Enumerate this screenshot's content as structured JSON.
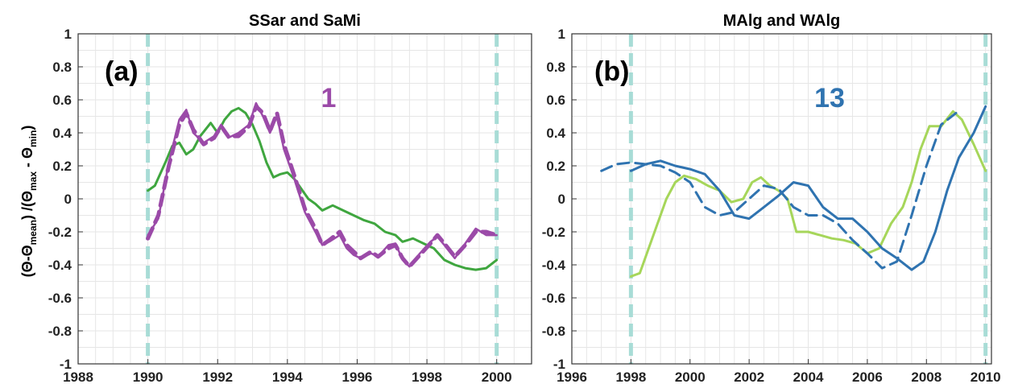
{
  "ylabel": {
    "p1": "(Θ-Θ",
    "s1": "mean",
    "p2": ") /(Θ",
    "s2": "max",
    "p3": " - Θ",
    "s3": "min",
    "p4": ")"
  },
  "colors": {
    "purple": "#9b4aa8",
    "green_a": "#3fa63f",
    "green_b": "#a6d65a",
    "blue": "#2f73b0",
    "vline": "#a8dcd6"
  },
  "chart_data": [
    {
      "type": "line",
      "title": "SSar and SaMi",
      "panel_label": "(a)",
      "annotation": "1",
      "annotation_color": "#9b4aa8",
      "xlim": [
        1988,
        2001
      ],
      "ylim": [
        -1,
        1
      ],
      "xticks": [
        1988,
        1990,
        1992,
        1994,
        1996,
        1998,
        2000
      ],
      "yticks": [
        -1,
        -0.8,
        -0.6,
        -0.4,
        -0.2,
        0,
        0.2,
        0.4,
        0.6,
        0.8,
        1
      ],
      "vlines": [
        1990,
        2000
      ],
      "grid": true,
      "series": [
        {
          "color": "#3fa63f",
          "dash": "solid",
          "width": 3,
          "x": [
            1990,
            1990.2,
            1990.5,
            1990.7,
            1990.9,
            1991.1,
            1991.3,
            1991.5,
            1991.8,
            1992.0,
            1992.2,
            1992.4,
            1992.6,
            1992.8,
            1993.0,
            1993.2,
            1993.4,
            1993.6,
            1993.8,
            1994.0,
            1994.2,
            1994.4,
            1994.6,
            1994.8,
            1995.0,
            1995.3,
            1995.6,
            1995.9,
            1996.2,
            1996.5,
            1996.8,
            1997.1,
            1997.3,
            1997.6,
            1997.9,
            1998.2,
            1998.5,
            1998.8,
            1999.1,
            1999.4,
            1999.7,
            2000
          ],
          "y": [
            0.05,
            0.08,
            0.22,
            0.32,
            0.34,
            0.27,
            0.3,
            0.38,
            0.46,
            0.4,
            0.48,
            0.53,
            0.55,
            0.52,
            0.45,
            0.35,
            0.22,
            0.13,
            0.15,
            0.16,
            0.12,
            0.06,
            0.0,
            -0.03,
            -0.07,
            -0.04,
            -0.07,
            -0.1,
            -0.13,
            -0.15,
            -0.2,
            -0.22,
            -0.26,
            -0.24,
            -0.27,
            -0.3,
            -0.37,
            -0.4,
            -0.42,
            -0.43,
            -0.42,
            -0.37
          ]
        },
        {
          "color": "#9b4aa8",
          "dash": "dashed",
          "width": 5,
          "x": [
            1990,
            1990.3,
            1990.6,
            1990.9,
            1991.1,
            1991.3,
            1991.6,
            1991.9,
            1992.1,
            1992.3,
            1992.6,
            1992.9,
            1993.1,
            1993.3,
            1993.5,
            1993.7,
            1993.9,
            1994.2,
            1994.5,
            1994.8,
            1995.0,
            1995.2,
            1995.5,
            1995.7,
            1995.9,
            1996.1,
            1996.4,
            1996.6,
            1996.9,
            1997.1,
            1997.3,
            1997.5,
            1997.8,
            1998.1,
            1998.3,
            1998.5,
            1998.8,
            1999.1,
            1999.4,
            1999.7,
            2000
          ],
          "y": [
            -0.24,
            -0.1,
            0.2,
            0.45,
            0.52,
            0.42,
            0.33,
            0.37,
            0.44,
            0.38,
            0.38,
            0.44,
            0.56,
            0.52,
            0.41,
            0.52,
            0.33,
            0.14,
            -0.06,
            -0.18,
            -0.28,
            -0.25,
            -0.2,
            -0.28,
            -0.32,
            -0.36,
            -0.32,
            -0.35,
            -0.3,
            -0.28,
            -0.36,
            -0.41,
            -0.34,
            -0.27,
            -0.22,
            -0.27,
            -0.35,
            -0.28,
            -0.2,
            -0.2,
            -0.22
          ]
        },
        {
          "color": "#9b4aa8",
          "dash": "solid",
          "width": 2.5,
          "x": [
            1990,
            1990.3,
            1990.6,
            1990.9,
            1991.1,
            1991.3,
            1991.6,
            1991.9,
            1992.1,
            1992.3,
            1992.6,
            1992.9,
            1993.1,
            1993.3,
            1993.5,
            1993.7,
            1993.9,
            1994.2,
            1994.5,
            1994.8,
            1995.0,
            1995.2,
            1995.5,
            1995.7,
            1995.9,
            1996.1,
            1996.4,
            1996.6,
            1996.9,
            1997.1,
            1997.3,
            1997.5,
            1997.8,
            1998.1,
            1998.3,
            1998.5,
            1998.8,
            1999.1,
            1999.4,
            1999.7,
            2000
          ],
          "y": [
            -0.22,
            -0.12,
            0.22,
            0.48,
            0.54,
            0.4,
            0.34,
            0.38,
            0.45,
            0.37,
            0.4,
            0.45,
            0.58,
            0.5,
            0.4,
            0.5,
            0.3,
            0.12,
            -0.08,
            -0.2,
            -0.28,
            -0.26,
            -0.22,
            -0.3,
            -0.34,
            -0.36,
            -0.33,
            -0.35,
            -0.28,
            -0.27,
            -0.37,
            -0.41,
            -0.33,
            -0.26,
            -0.23,
            -0.28,
            -0.36,
            -0.27,
            -0.18,
            -0.22,
            -0.22
          ]
        }
      ]
    },
    {
      "type": "line",
      "title": "MAlg and WAlg",
      "panel_label": "(b)",
      "annotation": "13",
      "annotation_color": "#2f73b0",
      "xlim": [
        1996,
        2010.2
      ],
      "ylim": [
        -1,
        1
      ],
      "xticks": [
        1996,
        1998,
        2000,
        2002,
        2004,
        2006,
        2008,
        2010
      ],
      "yticks": [
        -1,
        -0.8,
        -0.6,
        -0.4,
        -0.2,
        0,
        0.2,
        0.4,
        0.6,
        0.8,
        1
      ],
      "vlines": [
        1998,
        2010
      ],
      "grid": true,
      "series": [
        {
          "color": "#a6d65a",
          "dash": "solid",
          "width": 3,
          "x": [
            1998,
            1998.3,
            1998.6,
            1998.9,
            1999.2,
            1999.5,
            1999.8,
            2000.2,
            2000.6,
            2001.0,
            2001.4,
            2001.8,
            2002.1,
            2002.4,
            2002.7,
            2003.0,
            2003.3,
            2003.6,
            2004.0,
            2004.4,
            2004.8,
            2005.2,
            2005.6,
            2006.0,
            2006.4,
            2006.8,
            2007.2,
            2007.5,
            2007.8,
            2008.1,
            2008.5,
            2008.9,
            2009.2,
            2009.6,
            2010
          ],
          "y": [
            -0.47,
            -0.45,
            -0.3,
            -0.15,
            0.0,
            0.1,
            0.14,
            0.12,
            0.08,
            0.05,
            -0.02,
            0.0,
            0.1,
            0.13,
            0.08,
            0.05,
            0.0,
            -0.2,
            -0.2,
            -0.22,
            -0.24,
            -0.25,
            -0.27,
            -0.33,
            -0.3,
            -0.15,
            -0.05,
            0.1,
            0.3,
            0.44,
            0.44,
            0.53,
            0.48,
            0.33,
            0.17
          ]
        },
        {
          "color": "#2f73b0",
          "dash": "dashed",
          "width": 3,
          "x": [
            1997,
            1997.5,
            1998,
            1998.5,
            1999.0,
            1999.5,
            2000.0,
            2000.5,
            2001.0,
            2001.5,
            2002.0,
            2002.5,
            2003.0,
            2003.5,
            2004.0,
            2004.5,
            2005.0,
            2005.5,
            2006.0,
            2006.5,
            2007.0,
            2007.5,
            2008.0,
            2008.5,
            2009.0
          ],
          "y": [
            0.17,
            0.21,
            0.22,
            0.21,
            0.2,
            0.16,
            0.1,
            -0.05,
            -0.1,
            -0.08,
            0.0,
            0.08,
            0.06,
            -0.05,
            -0.1,
            -0.1,
            -0.15,
            -0.25,
            -0.33,
            -0.42,
            -0.38,
            -0.1,
            0.2,
            0.45,
            0.52
          ]
        },
        {
          "color": "#2f73b0",
          "dash": "solid",
          "width": 3,
          "x": [
            1998,
            1998.5,
            1999.0,
            1999.5,
            2000.0,
            2000.5,
            2001.0,
            2001.5,
            2002.0,
            2002.5,
            2003.0,
            2003.5,
            2004.0,
            2004.5,
            2005.0,
            2005.5,
            2006.0,
            2006.5,
            2007.0,
            2007.5,
            2007.9,
            2008.3,
            2008.7,
            2009.1,
            2009.6,
            2010
          ],
          "y": [
            0.17,
            0.21,
            0.23,
            0.2,
            0.18,
            0.15,
            0.05,
            -0.1,
            -0.12,
            -0.05,
            0.02,
            0.1,
            0.08,
            -0.05,
            -0.12,
            -0.12,
            -0.2,
            -0.3,
            -0.36,
            -0.43,
            -0.38,
            -0.2,
            0.05,
            0.25,
            0.4,
            0.56
          ]
        }
      ]
    }
  ]
}
